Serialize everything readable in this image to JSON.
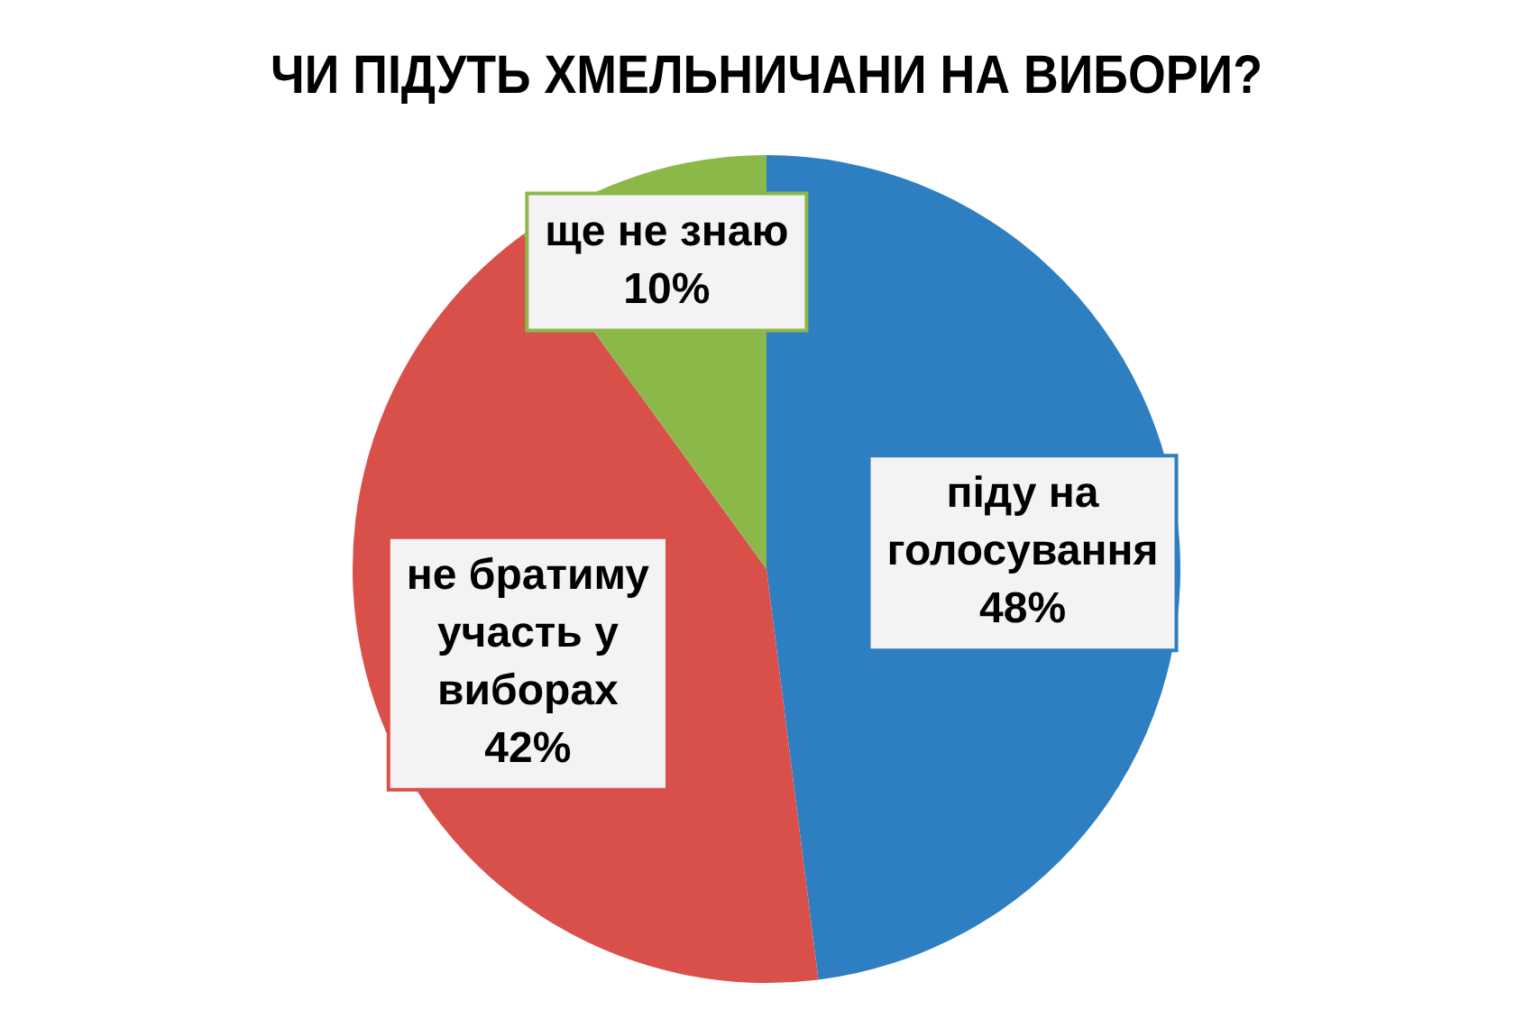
{
  "chart_data": {
    "type": "pie",
    "title": "ЧИ ПІДУТЬ ХМЕЛЬНИЧАНИ НА ВИБОРИ?",
    "categories": [
      "піду на голосування",
      "не братиму участь у виборах",
      "ще не знаю"
    ],
    "values": [
      48,
      42,
      10
    ],
    "colors": [
      "#2e7fc1",
      "#d9504b",
      "#8cb84a"
    ],
    "value_labels": [
      "48%",
      "42%",
      "10%"
    ],
    "legend": false
  }
}
